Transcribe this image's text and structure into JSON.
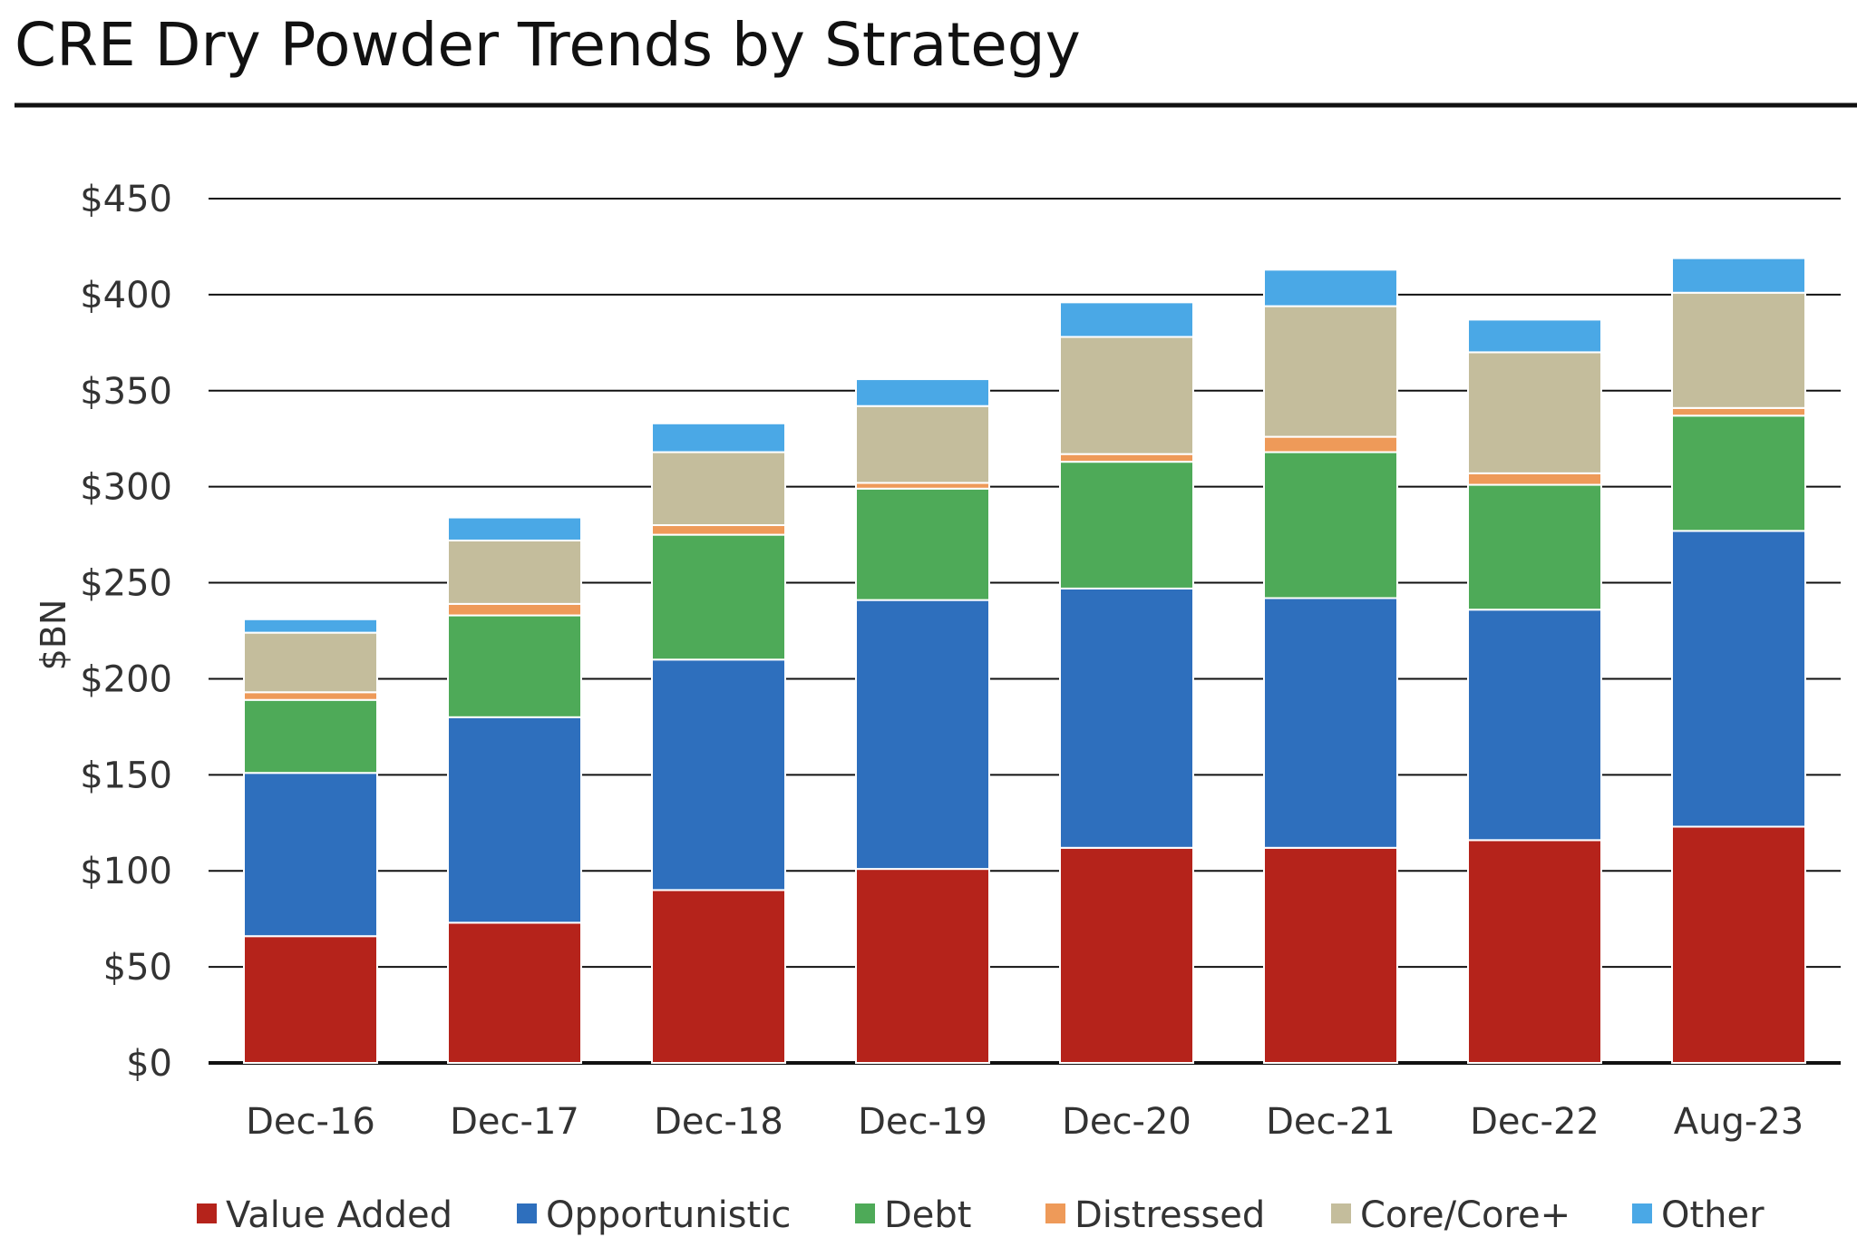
{
  "chart_data": {
    "type": "bar",
    "stacked": true,
    "title": "CRE Dry Powder Trends by Strategy",
    "xlabel": "",
    "ylabel": "$BN",
    "ylim": [
      0,
      450
    ],
    "yticks": [
      0,
      50,
      100,
      150,
      200,
      250,
      300,
      350,
      400,
      450
    ],
    "ytick_labels": [
      "$0",
      "$50",
      "$100",
      "$150",
      "$200",
      "$250",
      "$300",
      "$350",
      "$400",
      "$450"
    ],
    "grid": true,
    "legend_position": "bottom",
    "categories": [
      "Dec-16",
      "Dec-17",
      "Dec-18",
      "Dec-19",
      "Dec-20",
      "Dec-21",
      "Dec-22",
      "Aug-23"
    ],
    "series": [
      {
        "name": "Value Added",
        "color": "#B5231B",
        "values": [
          66,
          73,
          90,
          101,
          112,
          112,
          116,
          123
        ]
      },
      {
        "name": "Opportunistic",
        "color": "#2E6FBD",
        "values": [
          85,
          107,
          120,
          140,
          135,
          130,
          120,
          154
        ]
      },
      {
        "name": "Debt",
        "color": "#4EAA58",
        "values": [
          38,
          53,
          65,
          58,
          66,
          76,
          65,
          60
        ]
      },
      {
        "name": "Distressed",
        "color": "#EE9A59",
        "values": [
          4,
          6,
          5,
          3,
          4,
          8,
          6,
          4
        ]
      },
      {
        "name": "Core/Core+",
        "color": "#C4BD9C",
        "values": [
          31,
          33,
          38,
          40,
          61,
          68,
          63,
          60
        ]
      },
      {
        "name": "Other",
        "color": "#4AA8E6",
        "values": [
          7,
          12,
          15,
          14,
          18,
          19,
          17,
          18
        ]
      }
    ]
  }
}
